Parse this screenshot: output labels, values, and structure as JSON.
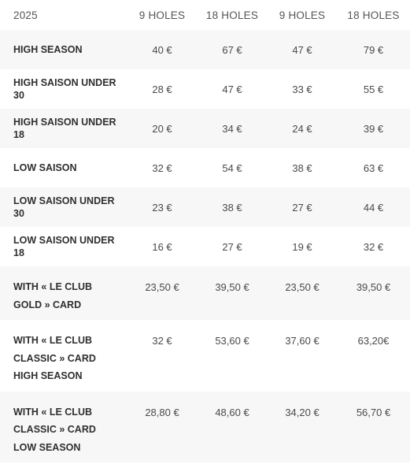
{
  "header": {
    "year": "2025",
    "columns": [
      "9 HOLES",
      "18 HOLES",
      "9 HOLES",
      "18 HOLES"
    ]
  },
  "rows": [
    {
      "label": "HIGH SEASON",
      "prices": [
        "40 €",
        "67 €",
        "47 €",
        "79 €"
      ]
    },
    {
      "label": "HIGH SAISON UNDER 30",
      "prices": [
        "28 €",
        "47 €",
        "33 €",
        "55 €"
      ]
    },
    {
      "label": "HIGH SAISON UNDER 18",
      "prices": [
        "20 €",
        "34 €",
        "24 €",
        "39 €"
      ]
    },
    {
      "label": "LOW SAISON",
      "prices": [
        "32 €",
        "54 €",
        "38 €",
        "63 €"
      ]
    },
    {
      "label": "LOW SAISON UNDER 30",
      "prices": [
        "23 €",
        "38 €",
        "27 €",
        "44 €"
      ]
    },
    {
      "label": "LOW SAISON UNDER 18",
      "prices": [
        "16 €",
        "27 €",
        "19 €",
        "32 €"
      ]
    },
    {
      "label": "WITH « LE CLUB GOLD » CARD",
      "prices": [
        "23,50 €",
        "39,50 €",
        "23,50 €",
        "39,50 €"
      ]
    },
    {
      "label": "WITH « LE CLUB CLASSIC » CARD HIGH SEASON",
      "prices": [
        "32 €",
        "53,60 €",
        "37,60 €",
        "63,20€"
      ]
    },
    {
      "label": "WITH « LE CLUB CLASSIC » CARD LOW SEASON",
      "prices": [
        "28,80 €",
        "48,60 €",
        "34,20 €",
        "56,70 €"
      ]
    }
  ]
}
